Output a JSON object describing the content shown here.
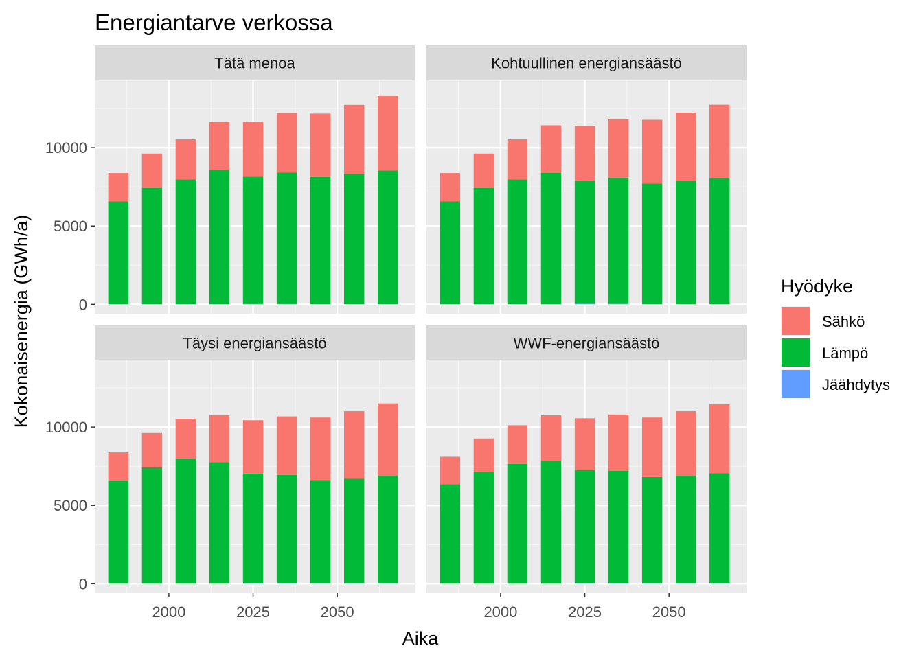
{
  "chart_data": {
    "type": "bar",
    "stacked": true,
    "title": "Energiantarve verkossa",
    "xlabel": "Aika",
    "ylabel": "Kokonaisenergia (GWh/a)",
    "x": [
      1985,
      1995,
      2005,
      2015,
      2025,
      2035,
      2045,
      2055,
      2065
    ],
    "xlim": [
      1978,
      2073
    ],
    "x_ticks": [
      2000,
      2025,
      2050
    ],
    "x_tick_labels": [
      "2000",
      "2025",
      "2050"
    ],
    "ylim": [
      -600,
      14300
    ],
    "y_ticks": [
      0,
      5000,
      10000
    ],
    "y_tick_labels": [
      "0",
      "5000",
      "10000"
    ],
    "grid": true,
    "legend": {
      "title": "Hyödyke",
      "position": "right",
      "entries": [
        {
          "name": "Sähkö",
          "color": "#F8766D"
        },
        {
          "name": "Lämpö",
          "color": "#00BA38"
        },
        {
          "name": "Jäähdytys",
          "color": "#619CFF"
        }
      ]
    },
    "stack_order": [
      "Jäähdytys",
      "Lämpö",
      "Sähkö"
    ],
    "panels": [
      {
        "label": "Tätä menoa",
        "series": [
          {
            "name": "Sähkö",
            "values": [
              1800,
              2200,
              2550,
              3050,
              3500,
              3800,
              4050,
              4400,
              4750
            ]
          },
          {
            "name": "Lämpö",
            "values": [
              6580,
              7420,
              7980,
              8580,
              8130,
              8400,
              8120,
              8320,
              8530
            ]
          },
          {
            "name": "Jäähdytys",
            "values": [
              0,
              0,
              0,
              0,
              20,
              20,
              10,
              10,
              10
            ]
          }
        ]
      },
      {
        "label": "Kohtuullinen energiansäästö",
        "series": [
          {
            "name": "Sähkö",
            "values": [
              1800,
              2200,
              2550,
              3030,
              3510,
              3720,
              4070,
              4360,
              4680
            ]
          },
          {
            "name": "Lämpö",
            "values": [
              6580,
              7420,
              7980,
              8400,
              7850,
              8060,
              7700,
              7870,
              8050
            ]
          },
          {
            "name": "Jäähdytys",
            "values": [
              0,
              0,
              0,
              0,
              40,
              30,
              10,
              10,
              10
            ]
          }
        ]
      },
      {
        "label": "Täysi energiansäästö",
        "series": [
          {
            "name": "Sähkö",
            "values": [
              1800,
              2200,
              2550,
              3000,
              3400,
              3730,
              4000,
              4300,
              4600
            ]
          },
          {
            "name": "Lämpö",
            "values": [
              6580,
              7420,
              7980,
              7760,
              7000,
              6920,
              6600,
              6700,
              6900
            ]
          },
          {
            "name": "Jäähdytys",
            "values": [
              0,
              0,
              0,
              0,
              30,
              30,
              10,
              10,
              10
            ]
          }
        ]
      },
      {
        "label": "WWF-energiansäästö",
        "series": [
          {
            "name": "Sähkö",
            "values": [
              1750,
              2120,
              2480,
              2900,
              3300,
              3600,
              3800,
              4100,
              4400
            ]
          },
          {
            "name": "Lämpö",
            "values": [
              6350,
              7150,
              7640,
              7850,
              7220,
              7160,
              6800,
              6900,
              7050
            ]
          },
          {
            "name": "Jäähdytys",
            "values": [
              0,
              0,
              0,
              0,
              40,
              40,
              10,
              10,
              10
            ]
          }
        ]
      }
    ]
  }
}
